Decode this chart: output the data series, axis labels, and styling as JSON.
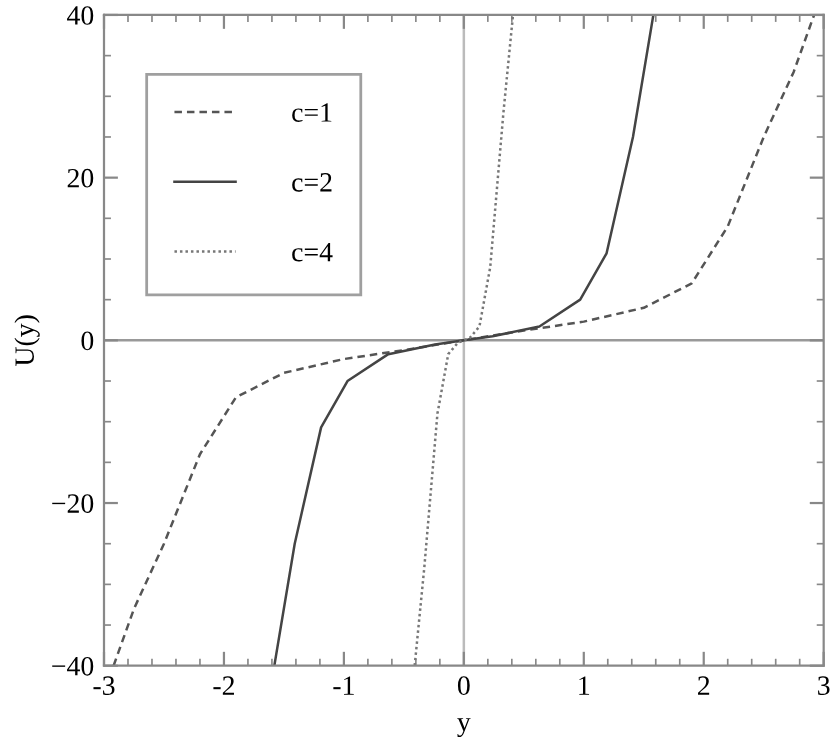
{
  "chart_data": {
    "type": "line",
    "xlabel": "y",
    "ylabel": "U(y)",
    "xlim": [
      -3,
      3
    ],
    "ylim": [
      -40,
      40
    ],
    "xticks": [
      -3,
      -2,
      -1,
      0,
      1,
      2,
      3
    ],
    "yticks": [
      {
        "value": -40,
        "label": "−40"
      },
      {
        "value": -20,
        "label": "−20"
      },
      0,
      20,
      40
    ],
    "grid": false,
    "legend": "top left",
    "marker": "none",
    "ref_lines": [
      {
        "axis": "x",
        "value": 0,
        "color": "#bbbbbb"
      },
      {
        "axis": "y",
        "value": 0,
        "color": "#999999"
      }
    ],
    "series": [
      {
        "name": "c=1",
        "color": "#555555",
        "line_style": "dashed",
        "x": [
          -2.92,
          -2.75,
          -2.5,
          -2.2,
          -1.9,
          -1.5,
          -1.0,
          -0.5,
          0,
          0.5,
          1.0,
          1.5,
          1.9,
          2.2,
          2.5,
          2.75,
          2.92
        ],
        "values": [
          -40,
          -33,
          -25,
          -14,
          -7,
          -4,
          -2.3,
          -1.2,
          0,
          1.2,
          2.3,
          4,
          7,
          14,
          25,
          33,
          40
        ]
      },
      {
        "name": "c=2",
        "color": "#444444",
        "line_style": "solid",
        "x": [
          -1.58,
          -1.41,
          -1.19,
          -0.97,
          -0.63,
          -0.24,
          0,
          0.24,
          0.63,
          0.97,
          1.19,
          1.41,
          1.58
        ],
        "values": [
          -40,
          -25,
          -10.7,
          -5,
          -1.7,
          -0.5,
          0,
          0.5,
          1.7,
          5,
          10.7,
          25,
          40
        ]
      },
      {
        "name": "c=4",
        "color": "#777777",
        "line_style": "dotted",
        "x": [
          -0.41,
          -0.33,
          -0.22,
          -0.13,
          -0.05,
          0,
          0.05,
          0.13,
          0.22,
          0.33,
          0.41
        ],
        "values": [
          -40,
          -28,
          -9,
          -1.7,
          -0.3,
          0,
          0.3,
          1.7,
          9,
          28,
          40
        ]
      }
    ]
  }
}
